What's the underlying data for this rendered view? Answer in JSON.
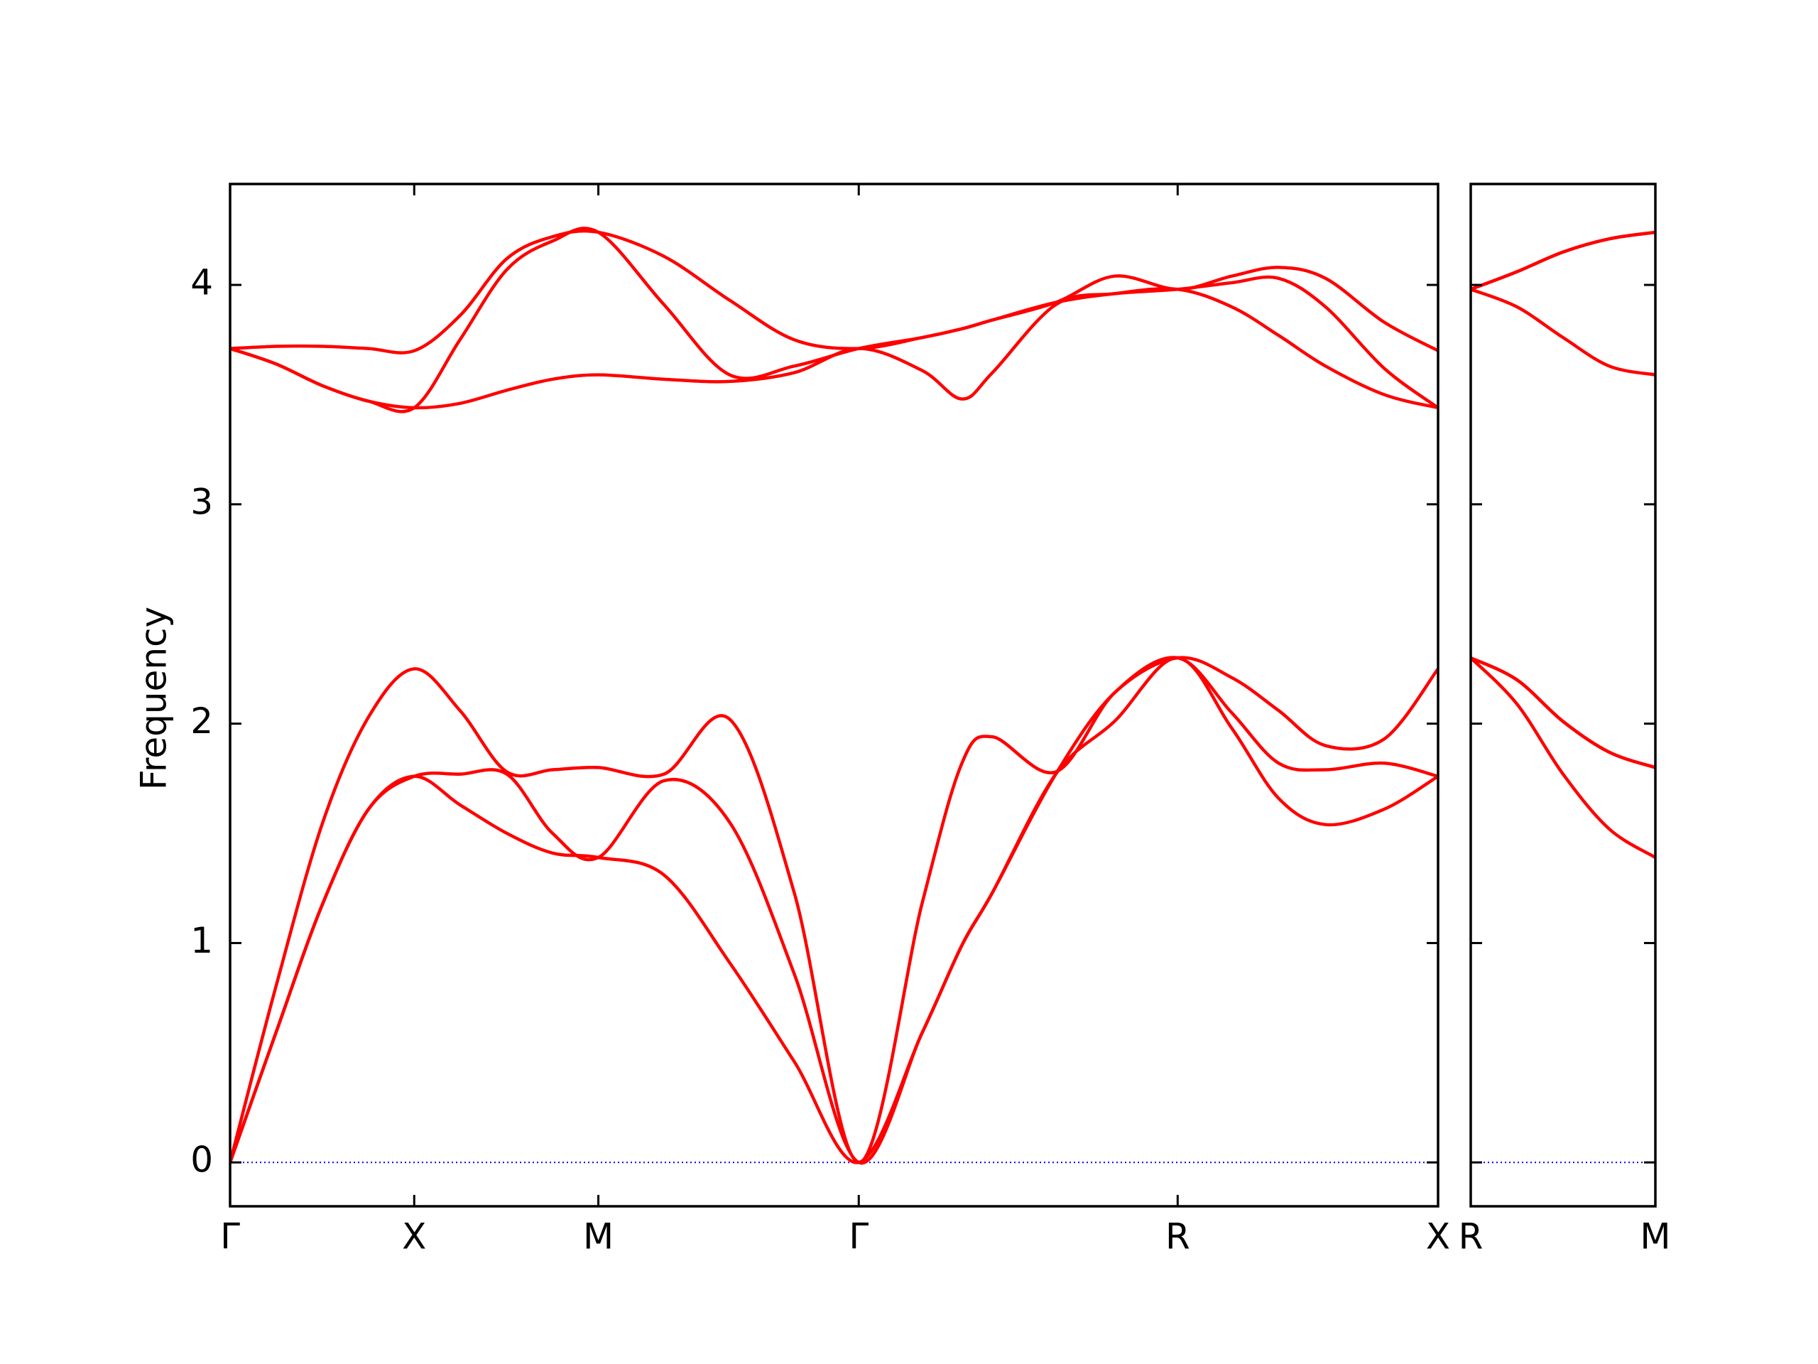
{
  "chart_data": [
    {
      "type": "line",
      "ylabel": "Frequency",
      "x": [
        0,
        0.1242,
        0.2516,
        0.3758,
        0.5,
        0.6242,
        0.7516,
        0.8758,
        1.0,
        1.1783,
        1.3567,
        1.5318,
        1.7071,
        1.879,
        1.9873,
        2.0701,
        2.242,
        2.4013,
        2.5731,
        2.7197,
        2.8471,
        2.9745,
        3.1338,
        3.2802
      ],
      "series": [
        {
          "color": "#ff0000",
          "values": [
            0,
            0.59,
            1.18,
            1.61,
            1.76,
            1.63,
            1.5,
            1.41,
            1.39,
            1.31,
            0.91,
            0.46,
            0,
            0.59,
            0.99,
            1.23,
            1.77,
            2.01,
            2.3,
            1.98,
            1.66,
            1.54,
            1.61,
            1.76
          ]
        },
        {
          "color": "#ff0000",
          "values": [
            0,
            0.59,
            1.18,
            1.61,
            1.76,
            1.77,
            1.77,
            1.5,
            1.39,
            1.74,
            1.55,
            0.86,
            0,
            0.59,
            0.99,
            1.23,
            1.77,
            2.14,
            2.3,
            2.05,
            1.82,
            1.79,
            1.82,
            1.76
          ]
        },
        {
          "color": "#ff0000",
          "values": [
            0,
            0.8,
            1.55,
            2.03,
            2.25,
            2.06,
            1.78,
            1.79,
            1.8,
            1.77,
            2.02,
            1.23,
            0,
            1.18,
            1.82,
            1.94,
            1.78,
            2.14,
            2.3,
            2.21,
            2.06,
            1.9,
            1.93,
            2.25
          ]
        },
        {
          "color": "#ff0000",
          "values": [
            3.71,
            3.64,
            3.54,
            3.47,
            3.44,
            3.46,
            3.52,
            3.57,
            3.59,
            3.57,
            3.56,
            3.6,
            3.71,
            3.61,
            3.48,
            3.6,
            3.91,
            3.96,
            3.98,
            3.9,
            3.77,
            3.63,
            3.5,
            3.44
          ]
        },
        {
          "color": "#ff0000",
          "values": [
            3.71,
            3.64,
            3.54,
            3.47,
            3.44,
            3.75,
            4.07,
            4.2,
            4.24,
            3.91,
            3.59,
            3.63,
            3.71,
            3.76,
            3.8,
            3.84,
            3.92,
            3.96,
            3.98,
            4.01,
            4.03,
            3.9,
            3.62,
            3.44
          ]
        },
        {
          "color": "#ff0000",
          "values": [
            3.71,
            3.72,
            3.72,
            3.71,
            3.7,
            3.86,
            4.12,
            4.22,
            4.24,
            4.13,
            3.93,
            3.75,
            3.71,
            3.76,
            3.8,
            3.84,
            3.92,
            4.04,
            3.98,
            4.04,
            4.08,
            4.03,
            3.83,
            3.7
          ]
        }
      ],
      "xlim": [
        0,
        3.2802
      ],
      "xticks": [
        {
          "value": 0,
          "label": "Γ"
        },
        {
          "value": 0.5,
          "label": "X"
        },
        {
          "value": 1.0,
          "label": "M"
        },
        {
          "value": 1.7071,
          "label": "Γ"
        },
        {
          "value": 2.5731,
          "label": "R"
        },
        {
          "value": 3.2802,
          "label": "X"
        }
      ],
      "ylim": [
        -0.2,
        4.46
      ],
      "yticks": [
        0,
        1,
        2,
        3,
        4
      ],
      "hline": 0,
      "hline_color": "#0000ff"
    },
    {
      "type": "line",
      "x": [
        3.2802,
        3.4052,
        3.5302,
        3.6552,
        3.7802
      ],
      "series": [
        {
          "color": "#ff0000",
          "values": [
            2.3,
            2.09,
            1.77,
            1.52,
            1.39
          ]
        },
        {
          "color": "#ff0000",
          "values": [
            2.3,
            2.2,
            2.01,
            1.87,
            1.8
          ]
        },
        {
          "color": "#ff0000",
          "values": [
            2.3,
            2.2,
            2.01,
            1.87,
            1.8
          ]
        },
        {
          "color": "#ff0000",
          "values": [
            3.98,
            3.9,
            3.76,
            3.63,
            3.59
          ]
        },
        {
          "color": "#ff0000",
          "values": [
            3.98,
            4.06,
            4.15,
            4.21,
            4.24
          ]
        },
        {
          "color": "#ff0000",
          "values": [
            3.98,
            4.06,
            4.15,
            4.21,
            4.24
          ]
        }
      ],
      "xlim": [
        3.2802,
        3.7802
      ],
      "xticks": [
        {
          "value": 3.2802,
          "label": "R"
        },
        {
          "value": 3.7802,
          "label": "M"
        }
      ],
      "ylim": [
        -0.2,
        4.46
      ],
      "hline": 0,
      "hline_color": "#0000ff"
    }
  ]
}
